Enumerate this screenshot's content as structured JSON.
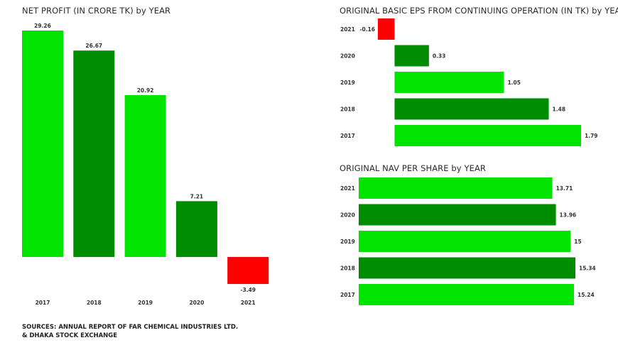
{
  "colors": {
    "bright_green": "#00e400",
    "dark_green": "#008c00",
    "negative": "#ff0000"
  },
  "chart_data": [
    {
      "type": "bar",
      "title": "NET PROFIT (IN CRORE TK) by YEAR",
      "categories": [
        "2017",
        "2018",
        "2019",
        "2020",
        "2021"
      ],
      "values": [
        29.26,
        26.67,
        20.92,
        7.21,
        -3.49
      ],
      "value_labels": [
        "29.26",
        "26.67",
        "20.92",
        "7.21",
        "-3.49"
      ],
      "bar_colors": [
        "#00e400",
        "#008c00",
        "#00e400",
        "#008c00",
        "#ff0000"
      ],
      "ylim": [
        -3.49,
        29.26
      ],
      "grid": false
    },
    {
      "type": "bar",
      "orientation": "horizontal",
      "title": "ORIGINAL BASIC EPS FROM CONTINUING OPERATION (IN TK) by YEAR",
      "categories": [
        "2021",
        "2020",
        "2019",
        "2018",
        "2017"
      ],
      "values": [
        -0.16,
        0.33,
        1.05,
        1.48,
        1.79
      ],
      "value_labels": [
        "-0.16",
        "0.33",
        "1.05",
        "1.48",
        "1.79"
      ],
      "bar_colors": [
        "#ff0000",
        "#008c00",
        "#00e400",
        "#008c00",
        "#00e400"
      ],
      "xlim": [
        -0.16,
        1.79
      ],
      "grid": false
    },
    {
      "type": "bar",
      "orientation": "horizontal",
      "title": "ORIGINAL NAV PER SHARE by YEAR",
      "categories": [
        "2021",
        "2020",
        "2019",
        "2018",
        "2017"
      ],
      "values": [
        13.71,
        13.96,
        15,
        15.34,
        15.24
      ],
      "value_labels": [
        "13.71",
        "13.96",
        "15",
        "15.34",
        "15.24"
      ],
      "bar_colors": [
        "#00e400",
        "#008c00",
        "#00e400",
        "#008c00",
        "#00e400"
      ],
      "xlim": [
        0,
        15.34
      ],
      "grid": false
    }
  ],
  "source": {
    "line1": "SOURCES: ANNUAL REPORT OF FAR CHEMICAL INDUSTRIES LTD.",
    "line2": "& DHAKA STOCK EXCHANGE"
  }
}
